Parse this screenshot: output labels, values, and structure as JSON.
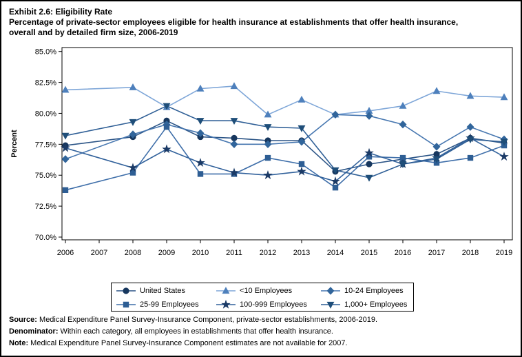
{
  "title": {
    "line1": "Exhibit 2.6: Eligibility Rate",
    "line2": "Percentage of private-sector employees eligible for health insurance at establishments that offer health insurance,",
    "line3": "overall and by detailed firm size, 2006-2019"
  },
  "chart_data": {
    "type": "line",
    "title": "Exhibit 2.6: Eligibility Rate",
    "xlabel": "",
    "ylabel": "Percent",
    "ylim": [
      70.0,
      85.0
    ],
    "yticks": [
      85.0,
      82.5,
      80.0,
      77.5,
      75.0,
      72.5,
      70.0
    ],
    "ytick_labels": [
      "85.0%",
      "82.5%",
      "80.0%",
      "77.5%",
      "75.0%",
      "72.5%",
      "70.0%"
    ],
    "x": [
      2006,
      2007,
      2008,
      2009,
      2010,
      2011,
      2012,
      2013,
      2014,
      2015,
      2016,
      2017,
      2018,
      2019
    ],
    "grid": false,
    "legend_position": "bottom",
    "missing_note": "2007 estimates not available",
    "series": [
      {
        "name": "United States",
        "marker": "circle",
        "marker_color": "#17375E",
        "line_color": "#2B5486",
        "values": [
          77.4,
          null,
          78.1,
          79.4,
          78.1,
          78.0,
          77.8,
          77.8,
          75.3,
          75.9,
          76.3,
          76.7,
          78.0,
          77.6
        ]
      },
      {
        "name": "<10 Employees",
        "marker": "triangle-up",
        "marker_color": "#4E80BC",
        "line_color": "#7EA6D8",
        "values": [
          81.9,
          null,
          82.1,
          80.5,
          82.0,
          82.2,
          79.9,
          81.1,
          79.9,
          80.2,
          80.6,
          81.8,
          81.4,
          81.3
        ]
      },
      {
        "name": "10-24 Employees",
        "marker": "diamond",
        "marker_color": "#31659B",
        "line_color": "#4777B0",
        "values": [
          76.3,
          null,
          78.3,
          79.1,
          78.4,
          77.5,
          77.5,
          77.7,
          79.9,
          79.8,
          79.1,
          77.3,
          78.9,
          77.9
        ]
      },
      {
        "name": "25-99 Employees",
        "marker": "square",
        "marker_color": "#2E5E94",
        "line_color": "#3E6EA9",
        "values": [
          73.8,
          null,
          75.2,
          78.9,
          75.1,
          75.1,
          76.4,
          75.9,
          74.0,
          76.5,
          76.4,
          76.0,
          76.4,
          77.4
        ]
      },
      {
        "name": "100-999 Employees",
        "marker": "star",
        "marker_color": "#1B3A66",
        "line_color": "#31619B",
        "values": [
          77.2,
          null,
          75.6,
          77.1,
          76.0,
          75.2,
          75.0,
          75.3,
          74.5,
          76.8,
          75.9,
          76.4,
          78.0,
          76.5
        ]
      },
      {
        "name": "1,000+ Employees",
        "marker": "triangle-down",
        "marker_color": "#1F4E79",
        "line_color": "#2F5F96",
        "values": [
          78.2,
          null,
          79.3,
          80.6,
          79.4,
          79.4,
          78.9,
          78.8,
          75.4,
          74.8,
          75.9,
          76.3,
          77.9,
          77.7
        ]
      }
    ],
    "legend_order": [
      0,
      1,
      2,
      3,
      4,
      5
    ]
  },
  "notes": [
    {
      "prefix": "Source:",
      "text": " Medical Expenditure Panel Survey-Insurance Component, private-sector establishments, 2006-2019."
    },
    {
      "prefix": "Denominator:",
      "text": " Within each category, all employees in establishments that offer health insurance."
    },
    {
      "prefix": "Note:",
      "text": " Medical Expenditure Panel Survey-Insurance Component estimates are not available for 2007."
    }
  ]
}
